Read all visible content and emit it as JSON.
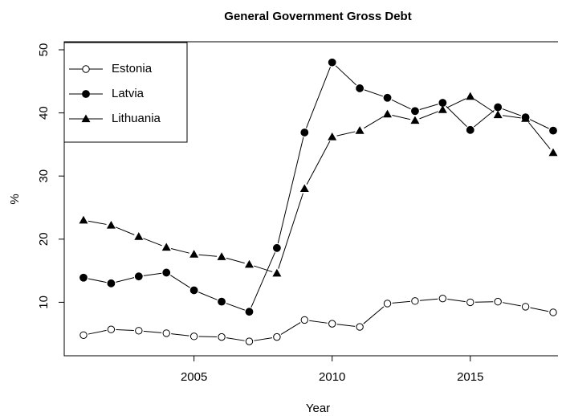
{
  "chart_data": {
    "type": "line",
    "title": "General Government Gross Debt",
    "xlabel": "Year",
    "ylabel": "%",
    "xlim": [
      2001,
      2018
    ],
    "ylim": [
      0,
      50
    ],
    "xticks": [
      2005,
      2010,
      2015
    ],
    "yticks": [
      10,
      20,
      30,
      40,
      50
    ],
    "legend_position": "top-left",
    "x": [
      2001,
      2002,
      2003,
      2004,
      2005,
      2006,
      2007,
      2008,
      2009,
      2010,
      2011,
      2012,
      2013,
      2014,
      2015,
      2016,
      2017,
      2018
    ],
    "series": [
      {
        "name": "Estonia",
        "marker": "open-circle",
        "values": [
          4.8,
          5.7,
          5.5,
          5.1,
          4.6,
          4.5,
          3.8,
          4.5,
          7.2,
          6.6,
          6.1,
          9.8,
          10.2,
          10.6,
          10.0,
          10.1,
          9.3,
          8.4
        ]
      },
      {
        "name": "Latvia",
        "marker": "filled-circle",
        "values": [
          13.9,
          13.0,
          14.1,
          14.7,
          11.9,
          10.1,
          8.5,
          18.6,
          36.9,
          48.0,
          43.9,
          42.4,
          40.3,
          41.6,
          37.3,
          40.9,
          39.3,
          37.2
        ]
      },
      {
        "name": "Lithuania",
        "marker": "filled-triangle",
        "values": [
          23.0,
          22.2,
          20.4,
          18.7,
          17.6,
          17.2,
          16.0,
          14.6,
          28.0,
          36.2,
          37.2,
          39.8,
          38.8,
          40.5,
          42.6,
          39.7,
          39.1,
          33.7
        ]
      }
    ]
  }
}
